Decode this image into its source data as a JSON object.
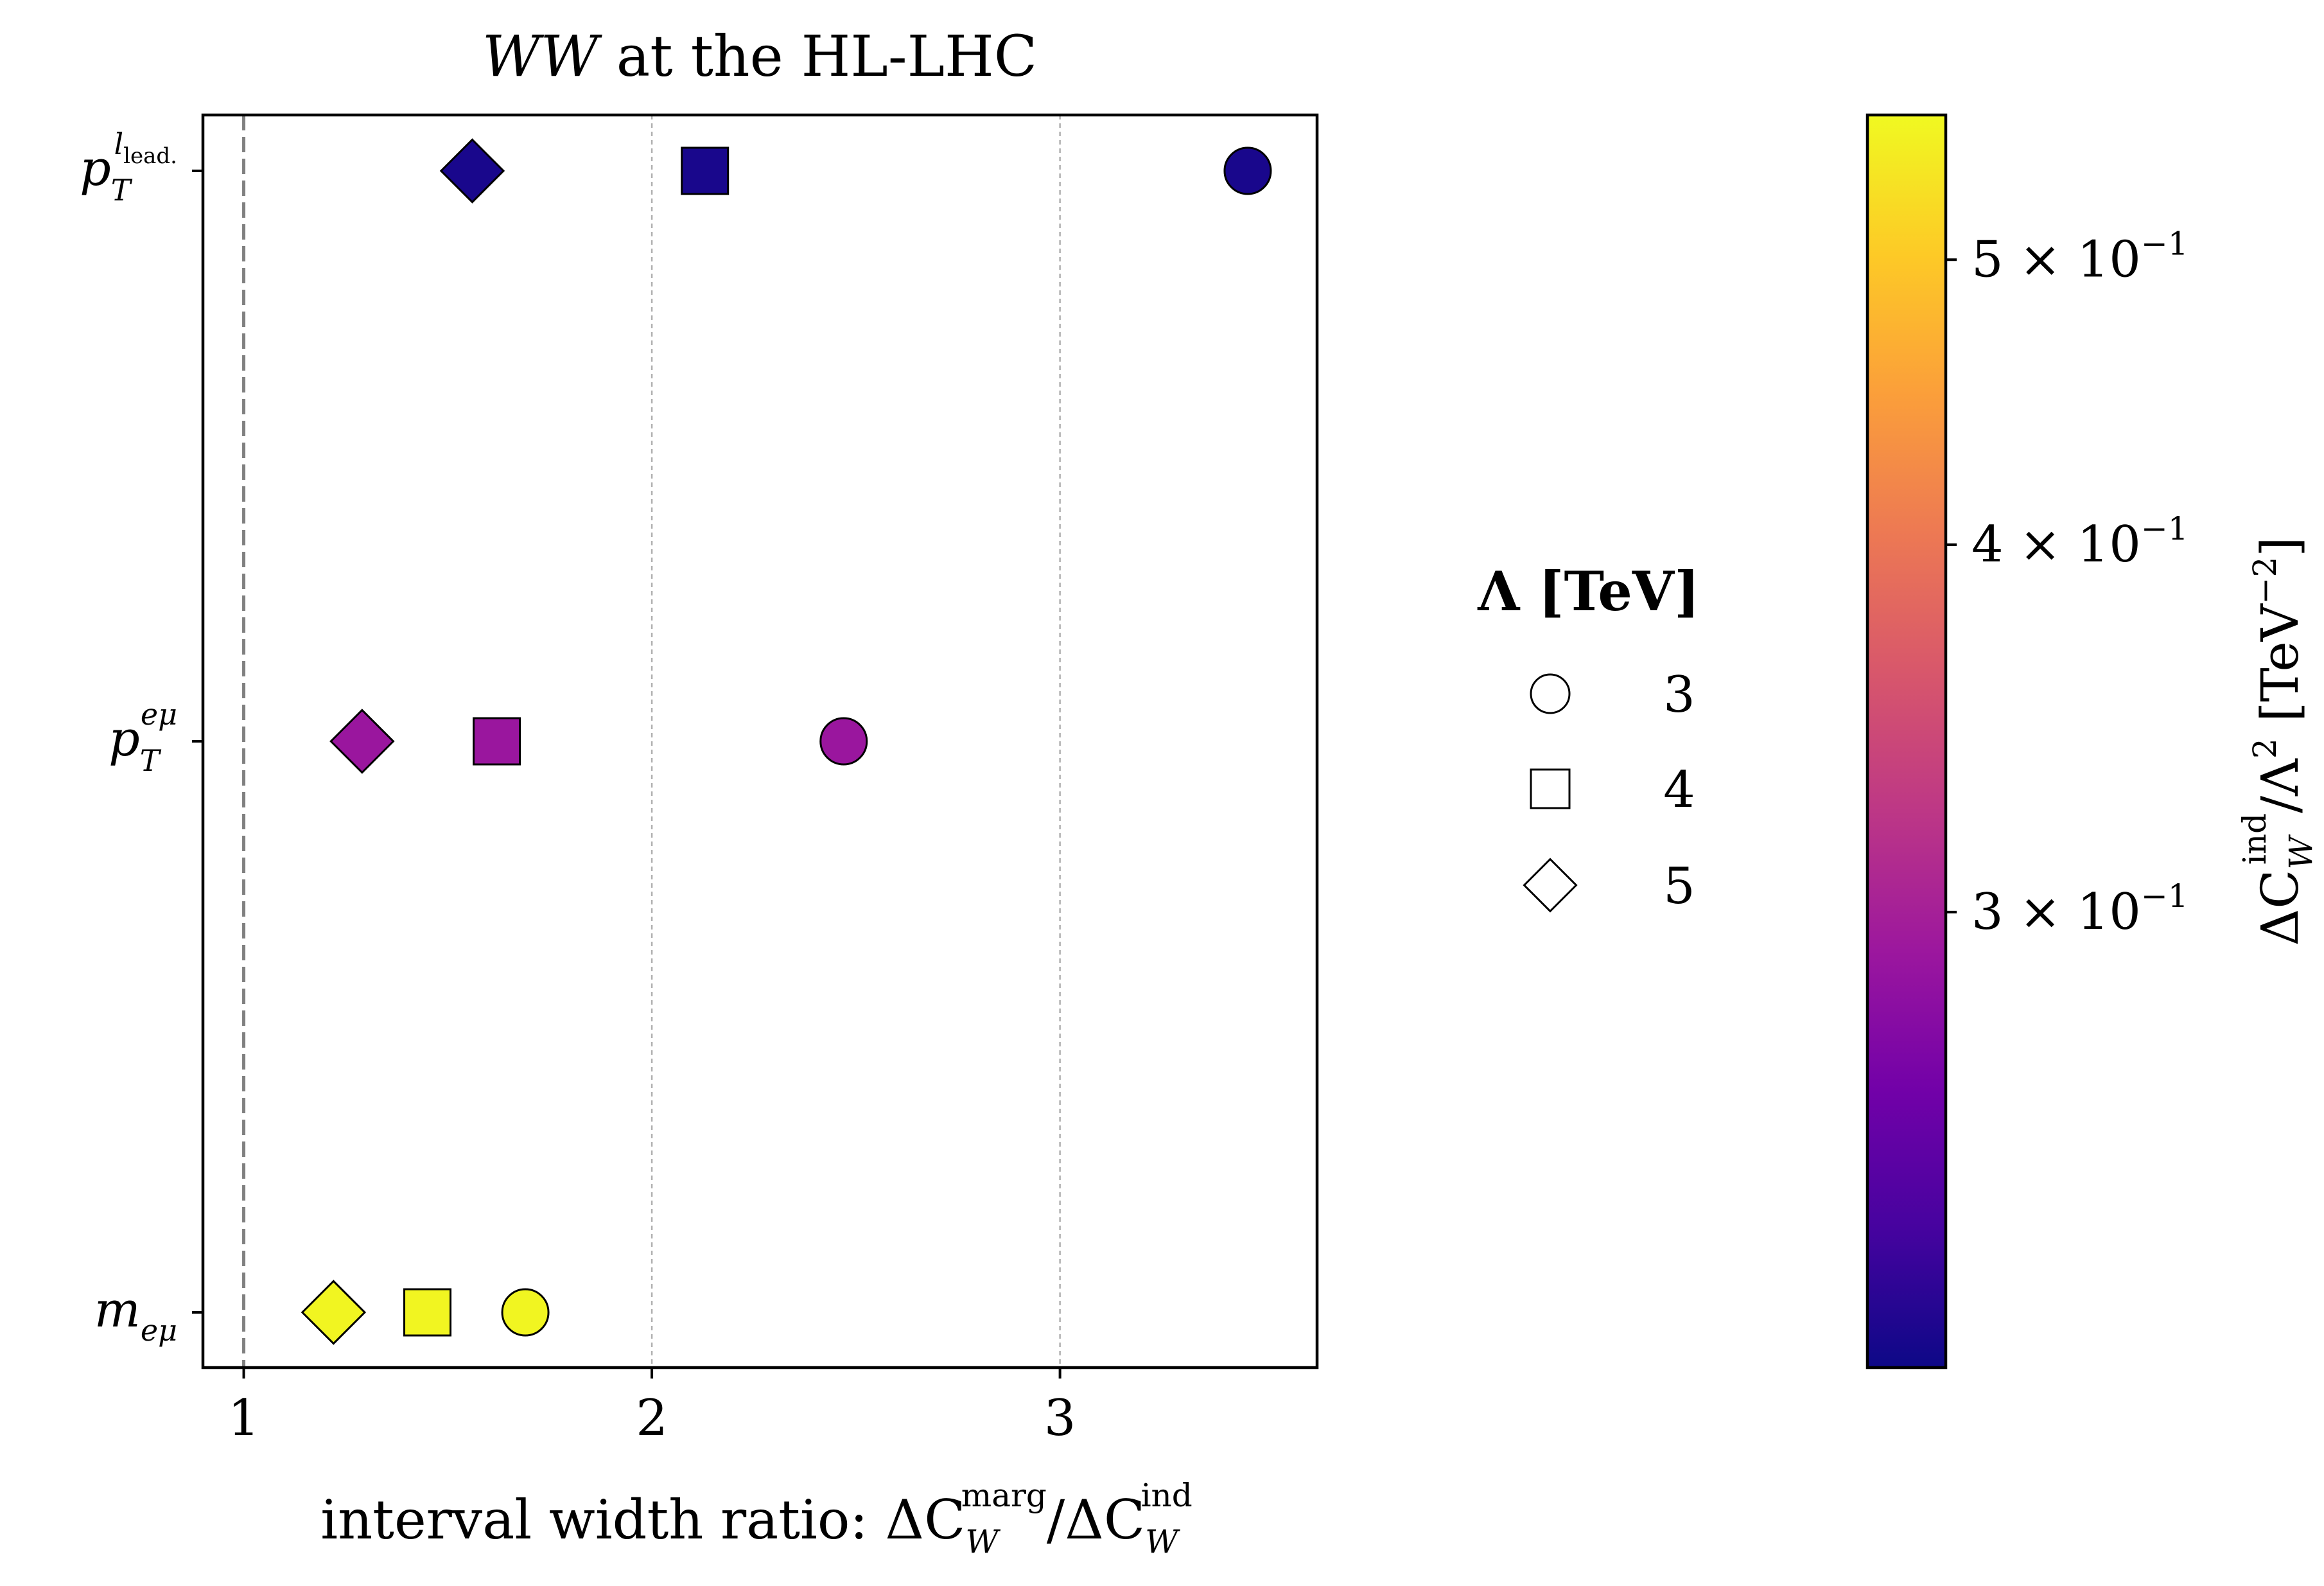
{
  "chart_data": {
    "type": "scatter",
    "title": "WW at the HL-LHC",
    "title_italic_part": "WW",
    "title_rest": " at the HL-LHC",
    "xlabel": "interval width ratio: ΔC_W^marg/ΔC_W^ind",
    "xlabel_parts": {
      "prefix": "interval width ratio: ΔC",
      "sub1": "W",
      "sup1": "marg",
      "mid": "/ΔC",
      "sub2": "W",
      "sup2": "ind"
    },
    "xlim": [
      0.9,
      3.63
    ],
    "xticks": [
      1,
      2,
      3
    ],
    "xtick_labels": [
      "1",
      "2",
      "3"
    ],
    "vertical_gridlines": [
      2,
      3
    ],
    "reference_line_x": 1,
    "categories": [
      {
        "key": "pt_llead",
        "label": "p_T^{l_lead.}",
        "base": "p",
        "sub": "T",
        "sup": "l",
        "supsub": "lead."
      },
      {
        "key": "pt_emu",
        "label": "p_T^{eμ}",
        "base": "p",
        "sub": "T",
        "sup": "eμ",
        "supsub": ""
      },
      {
        "key": "m_emu",
        "label": "m_{eμ}",
        "base": "m",
        "sub": "eμ",
        "sup": "",
        "supsub": ""
      }
    ],
    "legend": {
      "title": "Λ [TeV]",
      "entries": [
        {
          "marker": "circle",
          "label": "3"
        },
        {
          "marker": "square",
          "label": "4"
        },
        {
          "marker": "diamond",
          "label": "5"
        }
      ]
    },
    "series": [
      {
        "name": "Λ = 3 TeV",
        "marker": "circle",
        "x": [
          3.46,
          2.47,
          1.69
        ],
        "y": [
          "pt_llead",
          "pt_emu",
          "m_emu"
        ],
        "c": [
          0.215,
          0.29,
          0.555
        ]
      },
      {
        "name": "Λ = 4 TeV",
        "marker": "square",
        "x": [
          2.13,
          1.62,
          1.45
        ],
        "y": [
          "pt_llead",
          "pt_emu",
          "m_emu"
        ],
        "c": [
          0.215,
          0.29,
          0.555
        ]
      },
      {
        "name": "Λ = 5 TeV",
        "marker": "diamond",
        "x": [
          1.56,
          1.29,
          1.22
        ],
        "y": [
          "pt_llead",
          "pt_emu",
          "m_emu"
        ],
        "c": [
          0.215,
          0.29,
          0.555
        ]
      }
    ],
    "colorbar": {
      "label": "ΔC_W^ind/Λ^2 [TeV^-2]",
      "label_parts": {
        "a": "ΔC",
        "sub": "W",
        "sup": "ind",
        "b": "/Λ",
        "sup2": "2",
        "c": " [TeV",
        "sup3": "−2",
        "d": "]"
      },
      "scale": "log",
      "range": [
        0.21,
        0.56
      ],
      "colormap": "plasma",
      "ticks": [
        0.3,
        0.4,
        0.5
      ],
      "tick_labels": [
        {
          "mant": "3",
          "times": "×",
          "base": "10",
          "exp": "−1"
        },
        {
          "mant": "4",
          "times": "×",
          "base": "10",
          "exp": "−1"
        },
        {
          "mant": "5",
          "times": "×",
          "base": "10",
          "exp": "−1"
        }
      ]
    },
    "colors": {
      "plasma_stops": [
        "#0d0887",
        "#46039f",
        "#7201a8",
        "#9c179e",
        "#bd3786",
        "#d8576b",
        "#ed7953",
        "#fb9f3a",
        "#fdca26",
        "#f0f921"
      ]
    }
  }
}
